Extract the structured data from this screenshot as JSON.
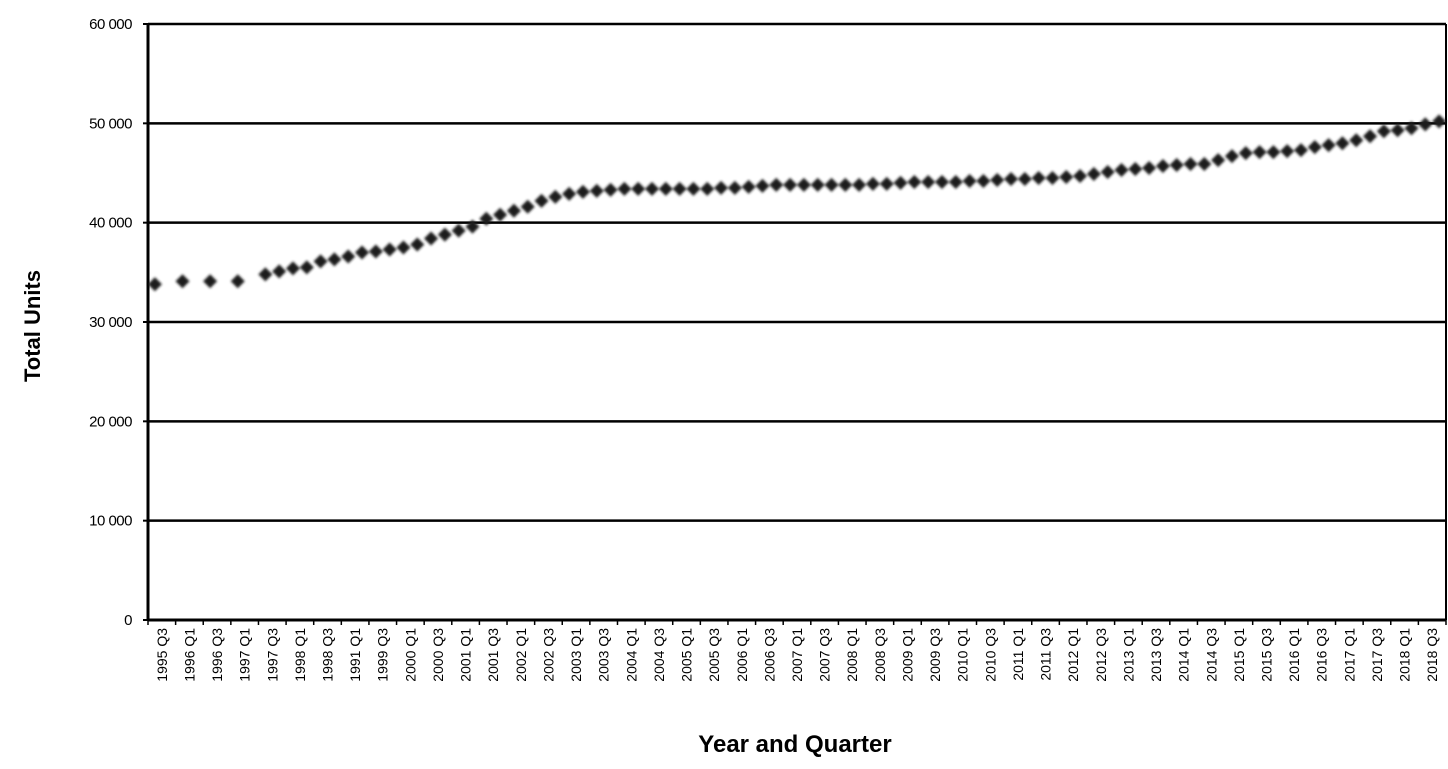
{
  "chart_data": {
    "type": "scatter",
    "xlabel": "Year and Quarter",
    "ylabel": "Total Units",
    "ylim": [
      0,
      60000
    ],
    "yticks": [
      "0",
      "10 000",
      "20 000",
      "30 000",
      "40 000",
      "50 000",
      "60 000"
    ],
    "ytick_values": [
      0,
      10000,
      20000,
      30000,
      40000,
      50000,
      60000
    ],
    "grid": "horizontal",
    "legend": "none",
    "x_tick_labels": [
      "1995 Q3",
      "1996 Q1",
      "1996 Q3",
      "1997 Q1",
      "1997 Q3",
      "1998 Q1",
      "1998 Q3",
      "1991 Q1",
      "1999 Q3",
      "2000 Q1",
      "2000 Q3",
      "2001 Q1",
      "2001 Q3",
      "2002 Q1",
      "2002 Q3",
      "2003 Q1",
      "2003 Q3",
      "2004 Q1",
      "2004 Q3",
      "2005 Q1",
      "2005 Q3",
      "2006 Q1",
      "2006 Q3",
      "2007 Q1",
      "2007 Q3",
      "2008 Q1",
      "2008 Q3",
      "2009 Q1",
      "2009 Q3",
      "2010 Q1",
      "2010 Q3",
      "2011 Q1",
      "2011 Q3",
      "2012 Q1",
      "2012 Q3",
      "2013 Q1",
      "2013 Q3",
      "2014 Q1",
      "2014 Q3",
      "2015 Q1",
      "2015 Q3",
      "2016 Q1",
      "2016 Q3",
      "2017 Q1",
      "2017 Q3",
      "2018 Q1",
      "2018 Q3"
    ],
    "marker": "diamond",
    "marker_color": "#1a1a1a",
    "series": [
      {
        "values": [
          33800,
          null,
          34100,
          null,
          34100,
          null,
          34100,
          null,
          34800,
          35100,
          35400,
          35500,
          36100,
          36300,
          36600,
          37000,
          37100,
          37300,
          37500,
          37800,
          38400,
          38800,
          39200,
          39600,
          40400,
          40800,
          41200,
          41600,
          42200,
          42600,
          42900,
          43100,
          43200,
          43300,
          43400,
          43400,
          43400,
          43400,
          43400,
          43400,
          43400,
          43500,
          43500,
          43600,
          43700,
          43800,
          43800,
          43800,
          43800,
          43800,
          43800,
          43800,
          43900,
          43900,
          44000,
          44100,
          44100,
          44100,
          44100,
          44200,
          44200,
          44300,
          44400,
          44400,
          44500,
          44500,
          44600,
          44700,
          44900,
          45100,
          45300,
          45400,
          45500,
          45700,
          45800,
          45900,
          45900,
          46300,
          46700,
          47000,
          47100,
          47100,
          47200,
          47300,
          47600,
          47800,
          48000,
          48300,
          48700,
          49200,
          49300,
          49500,
          49900,
          50200
        ]
      }
    ]
  }
}
